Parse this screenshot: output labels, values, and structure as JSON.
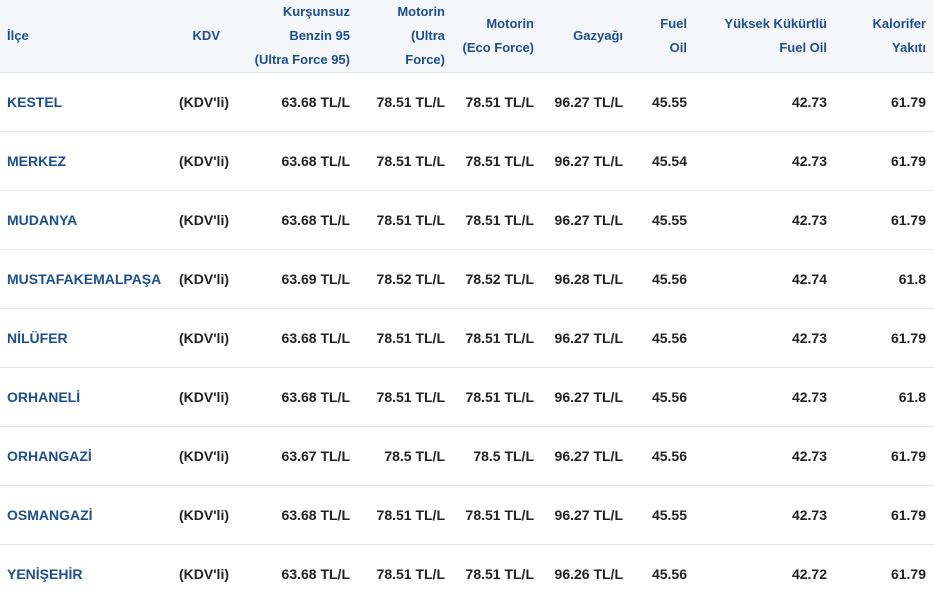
{
  "columns": [
    {
      "lines": [
        "İlçe"
      ]
    },
    {
      "lines": [
        "KDV"
      ]
    },
    {
      "lines": [
        "Kurşunsuz",
        "Benzin 95",
        "(Ultra Force 95)"
      ]
    },
    {
      "lines": [
        "Motorin",
        "(Ultra",
        "Force)"
      ]
    },
    {
      "lines": [
        "Motorin",
        "(Eco Force)"
      ]
    },
    {
      "lines": [
        "Gazyağı"
      ]
    },
    {
      "lines": [
        "Fuel",
        "Oil"
      ]
    },
    {
      "lines": [
        "Yüksek Kükürtlü",
        "Fuel Oil"
      ]
    },
    {
      "lines": [
        "Kalorifer",
        "Yakıtı"
      ]
    }
  ],
  "rows": [
    [
      "KESTEL",
      "(KDV'li)",
      "63.68 TL/L",
      "78.51 TL/L",
      "78.51 TL/L",
      "96.27 TL/L",
      "45.55",
      "42.73",
      "61.79"
    ],
    [
      "MERKEZ",
      "(KDV'li)",
      "63.68 TL/L",
      "78.51 TL/L",
      "78.51 TL/L",
      "96.27 TL/L",
      "45.54",
      "42.73",
      "61.79"
    ],
    [
      "MUDANYA",
      "(KDV'li)",
      "63.68 TL/L",
      "78.51 TL/L",
      "78.51 TL/L",
      "96.27 TL/L",
      "45.55",
      "42.73",
      "61.79"
    ],
    [
      "MUSTAFAKEMALPAŞA",
      "(KDV'li)",
      "63.69 TL/L",
      "78.52 TL/L",
      "78.52 TL/L",
      "96.28 TL/L",
      "45.56",
      "42.74",
      "61.8"
    ],
    [
      "NİLÜFER",
      "(KDV'li)",
      "63.68 TL/L",
      "78.51 TL/L",
      "78.51 TL/L",
      "96.27 TL/L",
      "45.56",
      "42.73",
      "61.79"
    ],
    [
      "ORHANELİ",
      "(KDV'li)",
      "63.68 TL/L",
      "78.51 TL/L",
      "78.51 TL/L",
      "96.27 TL/L",
      "45.56",
      "42.73",
      "61.8"
    ],
    [
      "ORHANGAZİ",
      "(KDV'li)",
      "63.67 TL/L",
      "78.5 TL/L",
      "78.5 TL/L",
      "96.27 TL/L",
      "45.56",
      "42.73",
      "61.79"
    ],
    [
      "OSMANGAZİ",
      "(KDV'li)",
      "63.68 TL/L",
      "78.51 TL/L",
      "78.51 TL/L",
      "96.27 TL/L",
      "45.55",
      "42.73",
      "61.79"
    ],
    [
      "YENİŞEHİR",
      "(KDV'li)",
      "63.68 TL/L",
      "78.51 TL/L",
      "78.51 TL/L",
      "96.26 TL/L",
      "45.56",
      "42.72",
      "61.79"
    ]
  ]
}
